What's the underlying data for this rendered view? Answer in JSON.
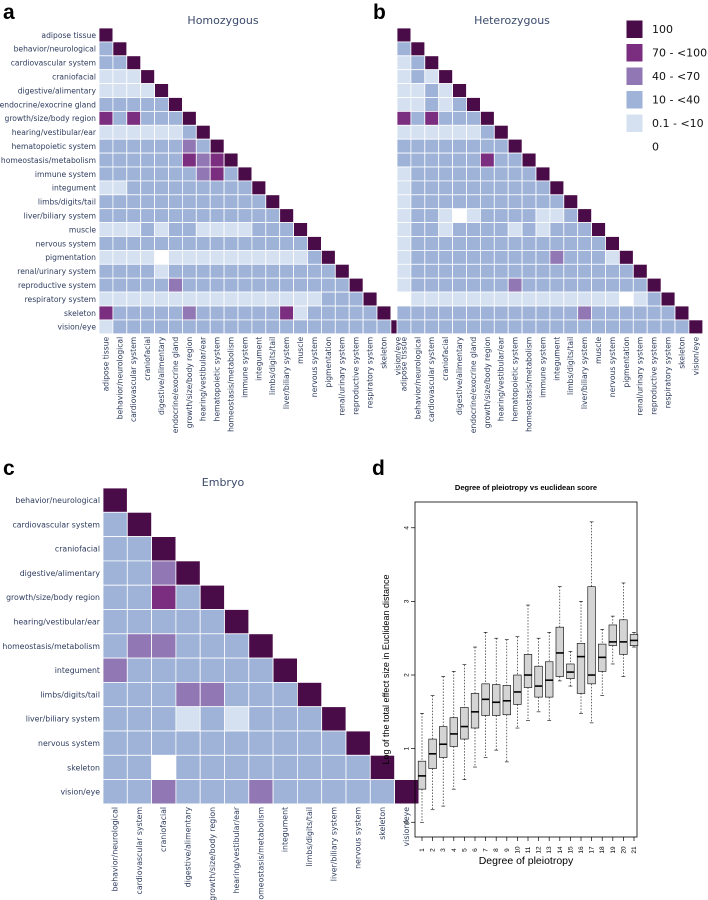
{
  "panels": {
    "a": {
      "letter": "a"
    },
    "b": {
      "letter": "b"
    },
    "c": {
      "letter": "c"
    },
    "d": {
      "letter": "d"
    }
  },
  "colors": {
    "c100": "#4a0c48",
    "c70": "#7b2d7f",
    "c40": "#9277b5",
    "c10": "#9fb3d9",
    "c01": "#d5e1f0",
    "c0": "#ffffff",
    "box_fill": "#d4d4d4"
  },
  "legend": {
    "items": [
      {
        "label": "100",
        "color_key": "c100"
      },
      {
        "label": "70 - <100",
        "color_key": "c70"
      },
      {
        "label": "40 - <70",
        "color_key": "c40"
      },
      {
        "label": "10 - <40",
        "color_key": "c10"
      },
      {
        "label": "0.1 - <10",
        "color_key": "c01"
      },
      {
        "label": "0",
        "color_key": "c0"
      }
    ]
  },
  "chart_data": [
    {
      "id": "homozygous",
      "type": "heatmap",
      "title": "Homozygous",
      "legend_scale": [
        "0",
        "0.1 - <10",
        "10 - <40",
        "40 - <70",
        "70 - <100",
        "100"
      ],
      "labels": [
        "adipose tissue",
        "behavior/neurological",
        "cardiovascular system",
        "craniofacial",
        "digestive/alimentary",
        "endocrine/exocrine gland",
        "growth/size/body region",
        "hearing/vestibular/ear",
        "hematopoietic system",
        "homeostasis/metabolism",
        "immune system",
        "integument",
        "limbs/digits/tail",
        "liver/biliary system",
        "muscle",
        "nervous system",
        "pigmentation",
        "renal/urinary system",
        "reproductive system",
        "respiratory system",
        "skeleton",
        "vision/eye"
      ],
      "rows": [
        "5",
        "25",
        "225",
        "1115",
        "11115",
        "222225",
        "4242225",
        "11111125",
        "222222325",
        "2222224345",
        "22222223425",
        "112222222225",
        "2222222222225",
        "22222222222225",
        "111212211112225",
        "2222222222222225",
        "11110111111111125",
        "222212222222222225",
        "2222232222222222225",
        "11111111111111112225",
        "422222322222241222225",
        "1222222222222222222225"
      ]
    },
    {
      "id": "heterozygous",
      "type": "heatmap",
      "title": "Heterozygous",
      "legend_scale": [
        "0",
        "0.1 - <10",
        "10 - <40",
        "40 - <70",
        "70 - <100",
        "100"
      ],
      "labels": [
        "adipose tissue",
        "behavior/neurological",
        "cardiovascular system",
        "craniofacial",
        "digestive/alimentary",
        "endocrine/exocrine gland",
        "growth/size/body region",
        "hearing/vestibular/ear",
        "hematopoietic system",
        "homeostasis/metabolism",
        "immune system",
        "integument",
        "limbs/digits/tail",
        "liver/biliary system",
        "muscle",
        "nervous system",
        "pigmentation",
        "renal/urinary system",
        "reproductive system",
        "respiratory system",
        "skeleton",
        "vision/eye"
      ],
      "rows": [
        "5",
        "25",
        "125",
        "1215",
        "11215",
        "112125",
        "4242225",
        "11111125",
        "222222225",
        "2222224225",
        "12222222225",
        "122222222225",
        "1222222222225",
        "12210122221125",
        "122122221212225",
        "1222222222222225",
        "12222222222322215",
        "122222222222222225",
        "1222222232222222225",
        "01111111111111110125",
        "222222222222232222225",
        "2222222222222222222225"
      ]
    },
    {
      "id": "embryo",
      "type": "heatmap",
      "title": "Embryo",
      "legend_scale": [
        "0",
        "0.1 - <10",
        "10 - <40",
        "40 - <70",
        "70 - <100",
        "100"
      ],
      "labels": [
        "behavior/neurological",
        "cardiovascular system",
        "craniofacial",
        "digestive/alimentary",
        "growth/size/body region",
        "hearing/vestibular/ear",
        "homeostasis/metabolism",
        "integument",
        "limbs/digits/tail",
        "liver/biliary system",
        "nervous system",
        "skeleton",
        "vision/eye"
      ],
      "rows": [
        "5",
        "25",
        "225",
        "2235",
        "22425",
        "222225",
        "2332225",
        "32222225",
        "222332225",
        "2221212225",
        "22222222225",
        "220222222225",
        "2232223222225"
      ]
    },
    {
      "id": "pleiotropy",
      "type": "box",
      "title": "Degree of pleiotropy vs euclidean score",
      "xlabel": "Degree of pleiotropy",
      "ylabel": "Log of the total effect size in Euclidean distance",
      "ylim": [
        -0.2,
        4.35
      ],
      "yticks": [
        "0",
        "1",
        "2",
        "3",
        "4"
      ],
      "categories": [
        "1",
        "2",
        "3",
        "4",
        "5",
        "6",
        "7",
        "8",
        "9",
        "10",
        "11",
        "12",
        "13",
        "14",
        "15",
        "16",
        "17",
        "18",
        "19",
        "20",
        "21"
      ],
      "boxes": [
        {
          "min": 0.0,
          "q1": 0.45,
          "median": 0.63,
          "q3": 0.83,
          "max": 1.48
        },
        {
          "min": 0.17,
          "q1": 0.73,
          "median": 0.93,
          "q3": 1.13,
          "max": 1.72
        },
        {
          "min": 0.22,
          "q1": 0.88,
          "median": 1.06,
          "q3": 1.3,
          "max": 1.98
        },
        {
          "min": 0.45,
          "q1": 1.03,
          "median": 1.2,
          "q3": 1.42,
          "max": 2.05
        },
        {
          "min": 0.58,
          "q1": 1.13,
          "median": 1.3,
          "q3": 1.56,
          "max": 2.14
        },
        {
          "min": 0.75,
          "q1": 1.28,
          "median": 1.5,
          "q3": 1.75,
          "max": 2.38
        },
        {
          "min": 0.88,
          "q1": 1.45,
          "median": 1.67,
          "q3": 1.88,
          "max": 2.58
        },
        {
          "min": 0.98,
          "q1": 1.45,
          "median": 1.63,
          "q3": 1.87,
          "max": 2.5
        },
        {
          "min": 0.82,
          "q1": 1.46,
          "median": 1.65,
          "q3": 1.86,
          "max": 2.48
        },
        {
          "min": 1.28,
          "q1": 1.6,
          "median": 1.77,
          "q3": 2.0,
          "max": 2.52
        },
        {
          "min": 1.38,
          "q1": 1.83,
          "median": 2.0,
          "q3": 2.28,
          "max": 2.95
        },
        {
          "min": 1.5,
          "q1": 1.7,
          "median": 1.85,
          "q3": 2.12,
          "max": 2.5
        },
        {
          "min": 1.38,
          "q1": 1.7,
          "median": 1.93,
          "q3": 2.18,
          "max": 2.58
        },
        {
          "min": 1.92,
          "q1": 1.98,
          "median": 2.3,
          "q3": 2.65,
          "max": 3.2
        },
        {
          "min": 1.85,
          "q1": 1.95,
          "median": 2.04,
          "q3": 2.15,
          "max": 2.32
        },
        {
          "min": 1.48,
          "q1": 1.75,
          "median": 2.25,
          "q3": 2.43,
          "max": 3.0
        },
        {
          "min": 1.35,
          "q1": 1.88,
          "median": 2.0,
          "q3": 3.2,
          "max": 4.08
        },
        {
          "min": 1.72,
          "q1": 2.05,
          "median": 2.24,
          "q3": 2.42,
          "max": 2.62
        },
        {
          "min": 2.15,
          "q1": 2.4,
          "median": 2.45,
          "q3": 2.68,
          "max": 2.8
        },
        {
          "min": 1.98,
          "q1": 2.28,
          "median": 2.45,
          "q3": 2.75,
          "max": 3.25
        },
        {
          "min": 2.38,
          "q1": 2.4,
          "median": 2.47,
          "q3": 2.55,
          "max": 2.58
        }
      ]
    }
  ]
}
